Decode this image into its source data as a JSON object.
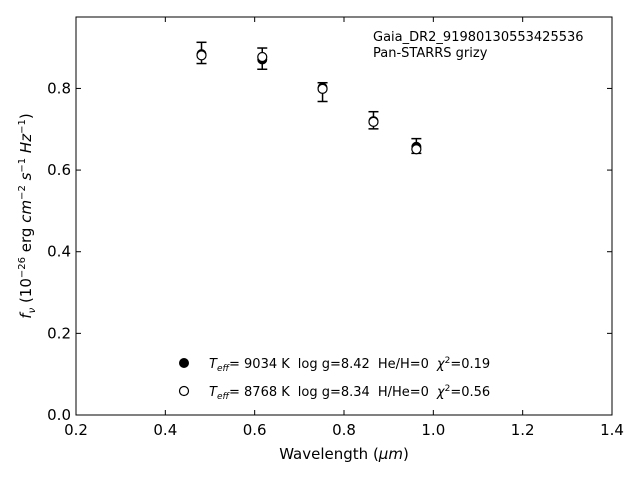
{
  "chart_data": {
    "type": "scatter",
    "xlabel_main": "Wavelength (",
    "xlabel_unit": "μm",
    "xlabel_close": ")",
    "ylabel_f": "f",
    "ylabel_sub": "ν",
    "ylabel_mid": " (10",
    "ylabel_exp": "−26",
    "ylabel_erg": " erg ",
    "ylabel_cm": "cm",
    "ylabel_cm_exp": "−2",
    "ylabel_s": " s",
    "ylabel_s_exp": "−1",
    "ylabel_hz": " Hz",
    "ylabel_hz_exp": "−1",
    "ylabel_close": ")",
    "xlim": [
      0.2,
      1.4
    ],
    "ylim": [
      0.0,
      0.975
    ],
    "xticks": [
      "0.2",
      "0.4",
      "0.6",
      "0.8",
      "1.0",
      "1.2",
      "1.4"
    ],
    "yticks": [
      "0.0",
      "0.2",
      "0.4",
      "0.6",
      "0.8"
    ],
    "xtick_values": [
      0.2,
      0.4,
      0.6,
      0.8,
      1.0,
      1.2,
      1.4
    ],
    "ytick_values": [
      0.0,
      0.2,
      0.4,
      0.6,
      0.8
    ],
    "annotation": [
      "Gaia_DR2_91980130553425536",
      "Pan-STARRS grizy"
    ],
    "observed": {
      "x": [
        0.481,
        0.617,
        0.752,
        0.866,
        0.962
      ],
      "y": [
        0.887,
        0.873,
        0.791,
        0.722,
        0.659
      ],
      "yerr": [
        0.026,
        0.026,
        0.023,
        0.021,
        0.018
      ]
    },
    "series": [
      {
        "marker": "filled",
        "x": [
          0.481,
          0.617,
          0.752,
          0.866,
          0.962
        ],
        "y": [
          0.884,
          0.871,
          0.802,
          0.72,
          0.657
        ],
        "legend": {
          "teff_label": "T",
          "teff_sub": "eff",
          "eq": "=  ",
          "teff": "9034 K",
          "logg": "log g=8.42",
          "comp": "He/H=0",
          "chi_label": "χ",
          "chi_exp": "2",
          "chi_val": "=0.19"
        }
      },
      {
        "marker": "open",
        "x": [
          0.481,
          0.617,
          0.752,
          0.866,
          0.962
        ],
        "y": [
          0.881,
          0.877,
          0.799,
          0.718,
          0.651
        ],
        "legend": {
          "teff_label": "T",
          "teff_sub": "eff",
          "eq": "=  ",
          "teff": "8768 K",
          "logg": "log g=8.34",
          "comp": "H/He=0",
          "chi_label": "χ",
          "chi_exp": "2",
          "chi_val": "=0.56"
        }
      }
    ],
    "grid": false,
    "legend_position": "lower-center"
  }
}
